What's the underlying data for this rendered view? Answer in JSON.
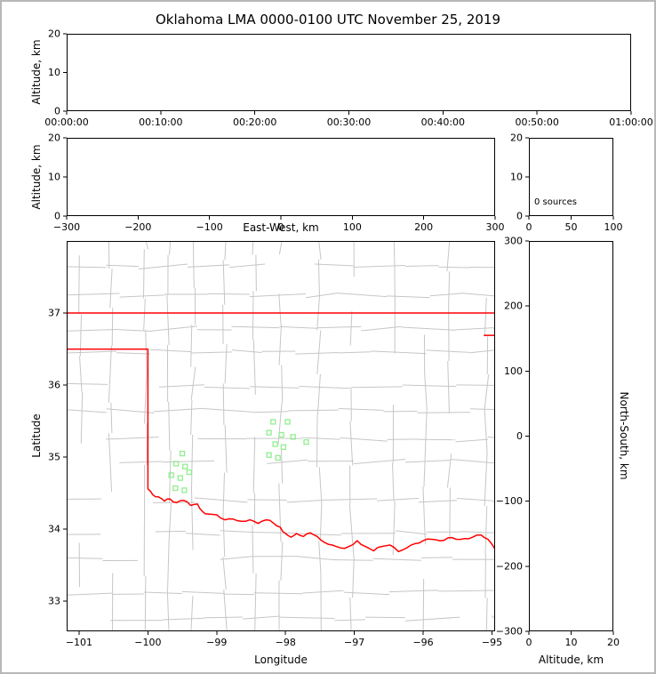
{
  "title": "Oklahoma LMA 0000-0100 UTC November 25, 2019",
  "colors": {
    "axis": "#000000",
    "state_border": "#ff0000",
    "county_lines": "#c6c6c6",
    "station_marker": "#90ee90",
    "frame": "#b8b8b8",
    "background": "#ffffff"
  },
  "chart_data": {
    "type": "scatter",
    "title": "Oklahoma LMA 0000-0100 UTC November 25, 2019",
    "description": "Lightning Mapping Array source display with zero sources; green squares are LMA station locations on the Oklahoma county map.",
    "panels": {
      "time_height": {
        "type": "scatter",
        "ylabel": "Altitude, km",
        "ylim": [
          0,
          20
        ],
        "yticks": [
          0,
          10,
          20
        ],
        "xtick_labels": [
          "00:00:00",
          "00:10:00",
          "00:20:00",
          "00:30:00",
          "00:40:00",
          "00:50:00",
          "01:00:00"
        ],
        "points": []
      },
      "ew_height": {
        "type": "scatter",
        "xlabel": "East-West, km",
        "ylabel": "Altitude, km",
        "xlim": [
          -300,
          300
        ],
        "xticks": [
          -300,
          -200,
          -100,
          0,
          100,
          200,
          300
        ],
        "ylim": [
          0,
          20
        ],
        "yticks": [
          0,
          10,
          20
        ],
        "points": []
      },
      "alt_hist": {
        "type": "histogram",
        "annotation": "0 sources",
        "xlim": [
          0,
          100
        ],
        "xticks": [
          0,
          50,
          100
        ],
        "ylim": [
          0,
          20
        ],
        "yticks": [
          0,
          10,
          20
        ],
        "values": []
      },
      "map": {
        "type": "scatter",
        "xlabel": "Longitude",
        "ylabel": "Latitude",
        "xlim": [
          -101.18,
          -94.955
        ],
        "xticks": [
          -101,
          -100,
          -99,
          -98,
          -97,
          -96,
          -95
        ],
        "ylim": [
          32.583,
          38.0
        ],
        "yticks": [
          33,
          34,
          35,
          36,
          37
        ],
        "stations": [
          [
            -98.18,
            35.49
          ],
          [
            -97.97,
            35.49
          ],
          [
            -98.24,
            35.34
          ],
          [
            -98.06,
            35.31
          ],
          [
            -97.89,
            35.28
          ],
          [
            -98.15,
            35.18
          ],
          [
            -98.03,
            35.14
          ],
          [
            -98.24,
            35.03
          ],
          [
            -98.11,
            34.99
          ],
          [
            -97.7,
            35.21
          ],
          [
            -99.5,
            35.05
          ],
          [
            -99.59,
            34.91
          ],
          [
            -99.46,
            34.87
          ],
          [
            -99.66,
            34.75
          ],
          [
            -99.53,
            34.71
          ],
          [
            -99.4,
            34.79
          ],
          [
            -99.6,
            34.57
          ],
          [
            -99.47,
            34.54
          ]
        ],
        "sources": []
      },
      "ns_height": {
        "type": "scatter",
        "xlabel": "Altitude, km",
        "ylabel": "North-South, km",
        "xlim": [
          0,
          20
        ],
        "xticks": [
          0,
          10,
          20
        ],
        "ylim": [
          -300,
          300
        ],
        "yticks": [
          -300,
          -200,
          -100,
          0,
          100,
          200,
          300
        ],
        "points": []
      }
    }
  }
}
